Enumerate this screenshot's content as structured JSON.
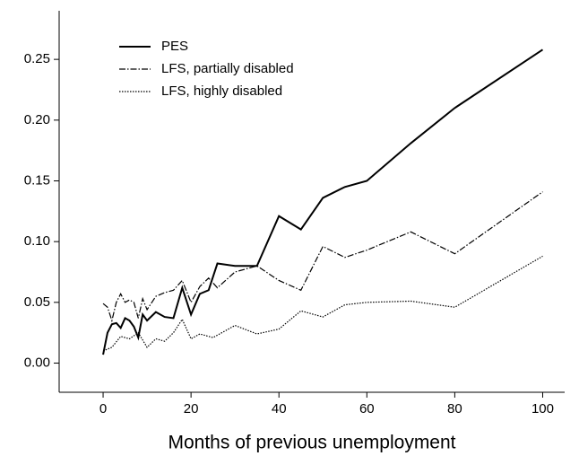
{
  "chart_data": {
    "type": "line",
    "xlabel": "Months of previous unemployment",
    "xlim": [
      -10,
      105
    ],
    "xticks": [
      0,
      20,
      40,
      60,
      80,
      100
    ],
    "ylim": [
      -0.024,
      0.29
    ],
    "yticks": [
      {
        "value": 0,
        "label": "0.00"
      },
      {
        "value": 0.05,
        "label": "0.05"
      },
      {
        "value": 0.1,
        "label": "0.10"
      },
      {
        "value": 0.15,
        "label": "0.15"
      },
      {
        "value": 0.2,
        "label": "0.20"
      },
      {
        "value": 0.25,
        "label": "0.25"
      }
    ],
    "grid": false,
    "legend": "upper left",
    "series": [
      {
        "name": "PES",
        "color": "#000000",
        "dash": "solid",
        "x": [
          0,
          1,
          2,
          3,
          4,
          5,
          6,
          7,
          8,
          9,
          10,
          12,
          14,
          16,
          18,
          20,
          22,
          24,
          26,
          30,
          35,
          40,
          45,
          50,
          55,
          60,
          70,
          80,
          100
        ],
        "values": [
          0.007,
          0.025,
          0.032,
          0.033,
          0.029,
          0.037,
          0.035,
          0.03,
          0.021,
          0.04,
          0.035,
          0.042,
          0.038,
          0.037,
          0.062,
          0.04,
          0.057,
          0.06,
          0.082,
          0.08,
          0.08,
          0.121,
          0.11,
          0.136,
          0.145,
          0.15,
          0.181,
          0.21,
          0.258
        ]
      },
      {
        "name": "LFS, partially disabled",
        "color": "#000000",
        "dash": "dashdot",
        "x": [
          0,
          1,
          2,
          3,
          4,
          5,
          6,
          7,
          8,
          9,
          10,
          12,
          14,
          16,
          18,
          20,
          22,
          24,
          26,
          30,
          35,
          40,
          45,
          50,
          55,
          60,
          70,
          80,
          100
        ],
        "values": [
          0.049,
          0.046,
          0.035,
          0.05,
          0.057,
          0.05,
          0.052,
          0.05,
          0.037,
          0.053,
          0.044,
          0.055,
          0.058,
          0.06,
          0.068,
          0.05,
          0.063,
          0.07,
          0.062,
          0.075,
          0.08,
          0.068,
          0.06,
          0.096,
          0.087,
          0.093,
          0.108,
          0.09,
          0.141
        ]
      },
      {
        "name": "LFS, highly disabled",
        "color": "#000000",
        "dash": "dotted",
        "x": [
          0,
          2,
          4,
          6,
          8,
          10,
          12,
          14,
          16,
          18,
          20,
          22,
          25,
          30,
          35,
          40,
          45,
          50,
          55,
          60,
          70,
          80,
          100
        ],
        "values": [
          0.01,
          0.013,
          0.022,
          0.02,
          0.025,
          0.013,
          0.02,
          0.018,
          0.025,
          0.036,
          0.02,
          0.024,
          0.021,
          0.031,
          0.024,
          0.028,
          0.043,
          0.038,
          0.048,
          0.05,
          0.051,
          0.046,
          0.088
        ]
      }
    ]
  }
}
